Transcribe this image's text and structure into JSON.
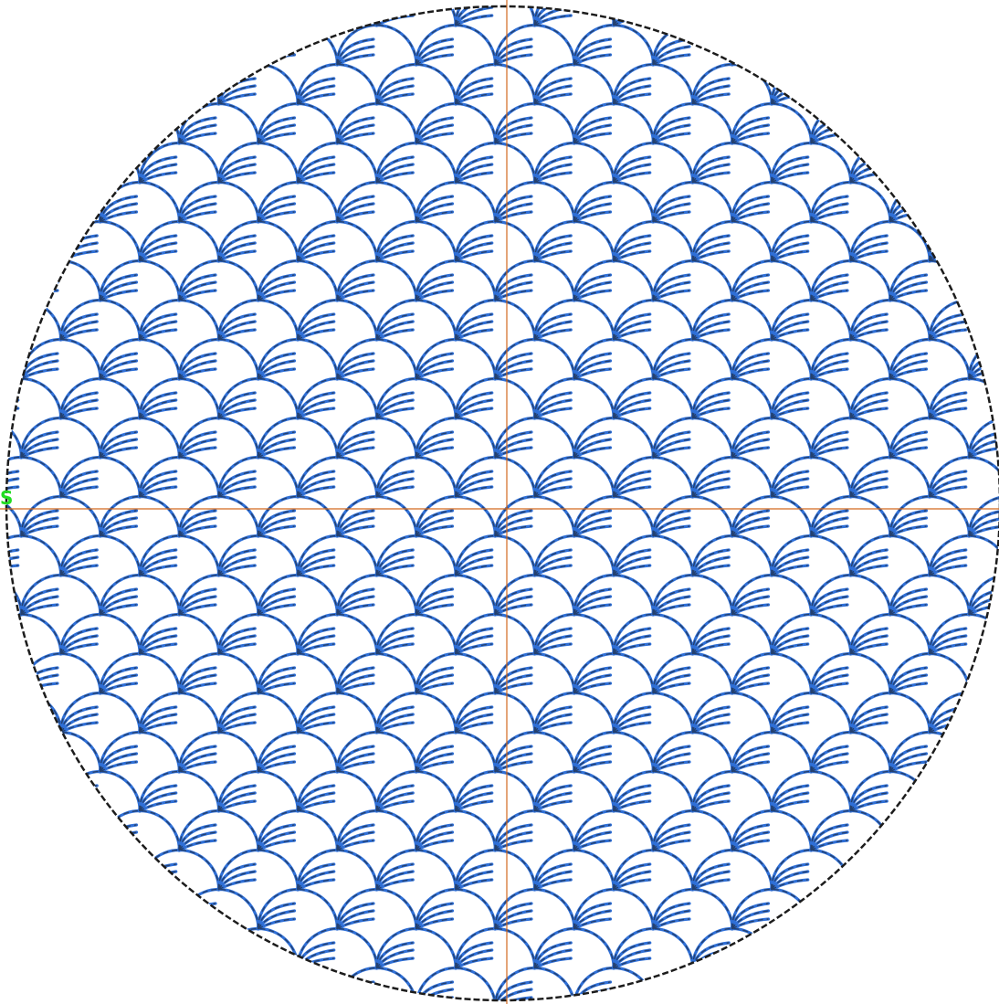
{
  "design": {
    "start_marker_label": "S",
    "colors": {
      "background": "#ffffff",
      "stitch_blue": "#2f6fd6",
      "stitch_dash": "#24406e",
      "boundary": "#1c1c1c",
      "crosshair": "#d2691e",
      "start_marker": "#22dd22"
    }
  }
}
